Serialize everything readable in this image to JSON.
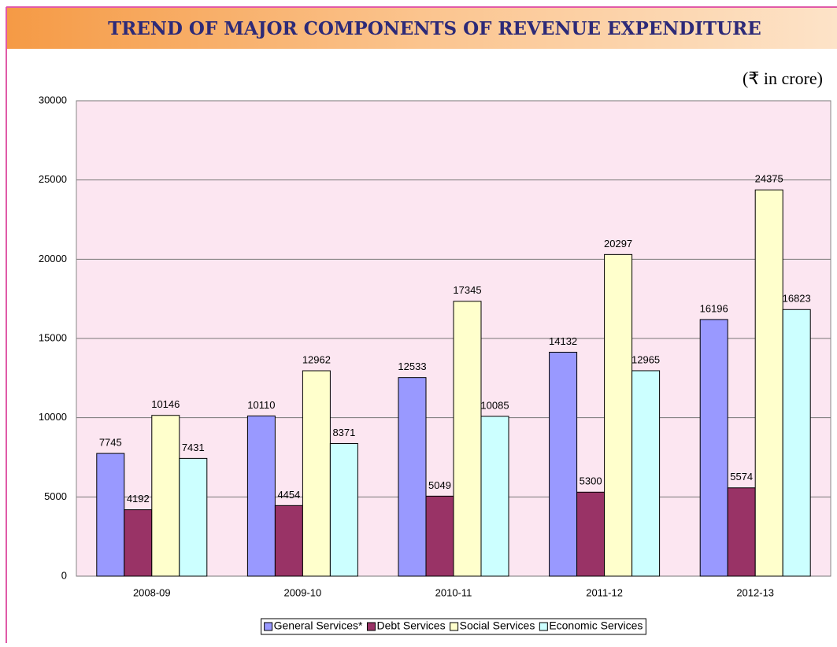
{
  "chart_data": {
    "type": "bar",
    "title": "TREND OF MAJOR COMPONENTS OF REVENUE EXPENDITURE",
    "unit_note": "(₹ in crore)",
    "categories": [
      "2008-09",
      "2009-10",
      "2010-11",
      "2011-12",
      "2012-13"
    ],
    "series": [
      {
        "name": "General Services*",
        "color": "#9999ff",
        "values": [
          7745,
          10110,
          12533,
          14132,
          16196
        ]
      },
      {
        "name": "Debt Services",
        "color": "#993366",
        "values": [
          4192,
          4454,
          5049,
          5300,
          5574
        ]
      },
      {
        "name": "Social Services",
        "color": "#ffffcc",
        "values": [
          10146,
          12962,
          17345,
          20297,
          24375
        ]
      },
      {
        "name": "Economic Services",
        "color": "#ccffff",
        "values": [
          7431,
          8371,
          10085,
          12965,
          16823
        ]
      }
    ],
    "ylim": [
      0,
      30000
    ],
    "yticks": [
      0,
      5000,
      10000,
      15000,
      20000,
      25000,
      30000
    ],
    "grid": true,
    "legend": "bottom"
  }
}
